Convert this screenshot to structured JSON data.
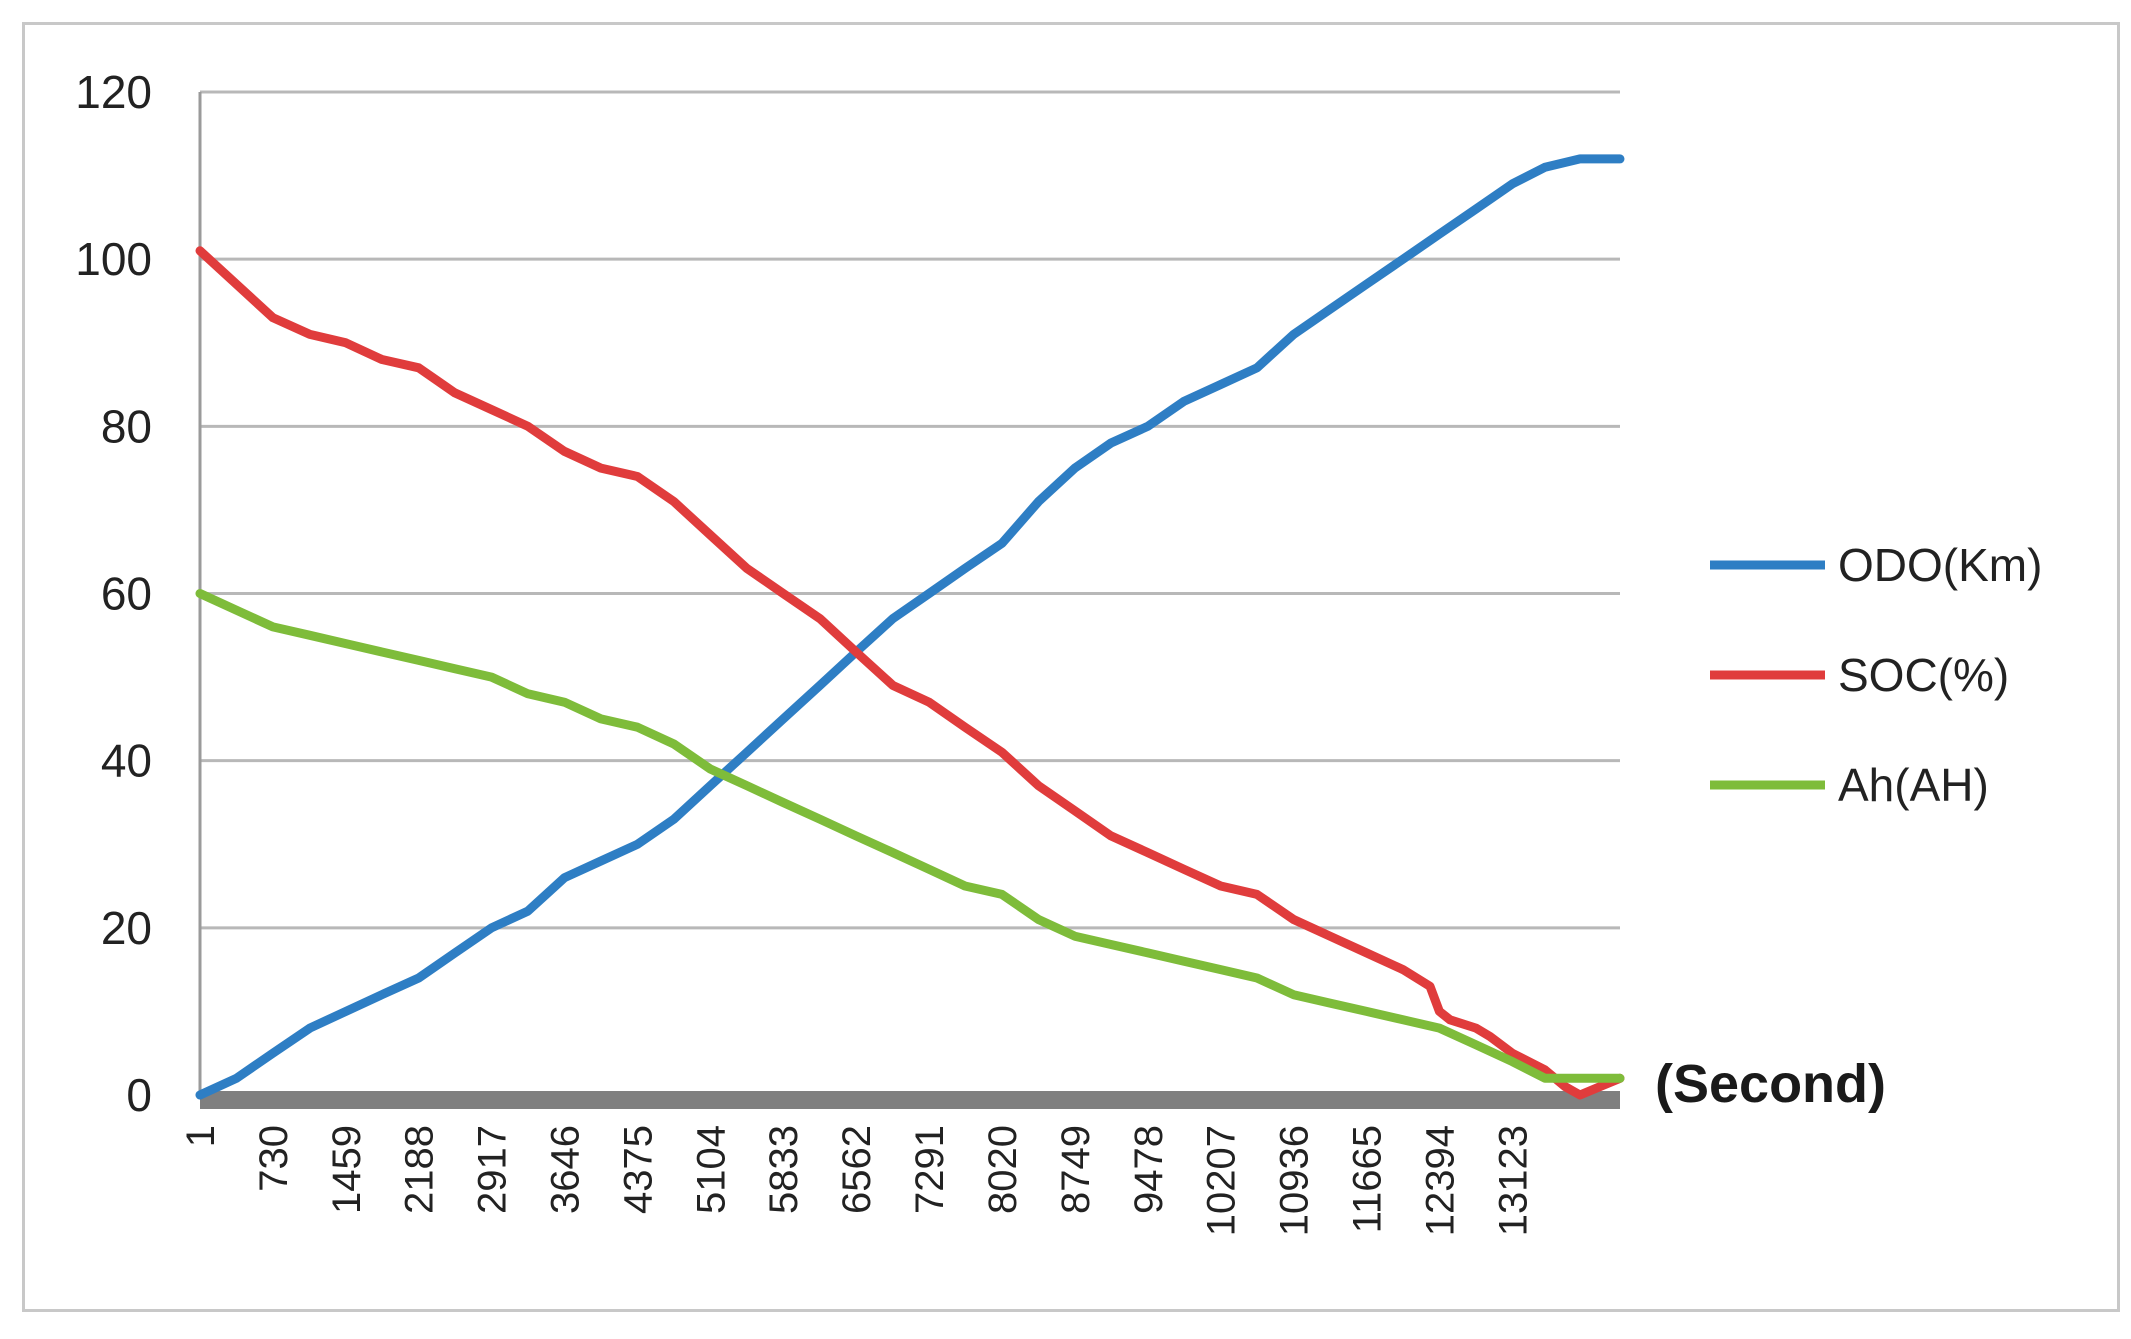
{
  "chart_data": {
    "type": "line",
    "title": "",
    "xlabel": "(Second)",
    "ylabel": "",
    "ylim": [
      0,
      120
    ],
    "yticks": [
      0,
      20,
      40,
      60,
      80,
      100,
      120
    ],
    "xlim": [
      1,
      14200
    ],
    "xticks": [
      "1",
      "730",
      "1459",
      "2188",
      "2917",
      "3646",
      "4375",
      "5104",
      "5833",
      "6562",
      "7291",
      "8020",
      "8749",
      "9478",
      "10207",
      "10936",
      "11665",
      "12394",
      "13123"
    ],
    "grid": true,
    "legend_position": "right",
    "colors": {
      "ODO": "#2e7ec4",
      "SOC": "#e03c3c",
      "Ah": "#7ebc3a",
      "axis_bar": "#7f7f7f",
      "grid": "#b8b8b8"
    },
    "series": [
      {
        "name": "ODO(Km)",
        "color": "#2e7ec4",
        "x": [
          1,
          365,
          730,
          1100,
          1459,
          1820,
          2188,
          2550,
          2917,
          3280,
          3646,
          4010,
          4375,
          4740,
          5104,
          5470,
          5833,
          6200,
          6562,
          6930,
          7291,
          7650,
          8020,
          8385,
          8749,
          9110,
          9478,
          9840,
          10207,
          10570,
          10936,
          11300,
          11665,
          12030,
          12394,
          12760,
          13123,
          13450,
          13800,
          14200
        ],
        "y": [
          0,
          2,
          5,
          8,
          10,
          12,
          14,
          17,
          20,
          22,
          26,
          28,
          30,
          33,
          37,
          41,
          45,
          49,
          53,
          57,
          60,
          63,
          66,
          71,
          75,
          78,
          80,
          83,
          85,
          87,
          91,
          94,
          97,
          100,
          103,
          106,
          109,
          111,
          112,
          112
        ]
      },
      {
        "name": "SOC(%)",
        "color": "#e03c3c",
        "x": [
          1,
          365,
          730,
          1100,
          1459,
          1820,
          2188,
          2550,
          2917,
          3280,
          3646,
          4010,
          4375,
          4740,
          5104,
          5470,
          5833,
          6200,
          6562,
          6930,
          7291,
          7650,
          8020,
          8385,
          8749,
          9110,
          9478,
          9840,
          10207,
          10570,
          10936,
          11300,
          11665,
          12030,
          12300,
          12394,
          12500,
          12760,
          12900,
          13123,
          13450,
          13650,
          13800,
          14000,
          14200
        ],
        "y": [
          101,
          97,
          93,
          91,
          90,
          88,
          87,
          84,
          82,
          80,
          77,
          75,
          74,
          71,
          67,
          63,
          60,
          57,
          53,
          49,
          47,
          44,
          41,
          37,
          34,
          31,
          29,
          27,
          25,
          24,
          21,
          19,
          17,
          15,
          13,
          10,
          9,
          8,
          7,
          5,
          3,
          1,
          0,
          1,
          2
        ]
      },
      {
        "name": "Ah(AH)",
        "color": "#7ebc3a",
        "x": [
          1,
          365,
          730,
          1100,
          1459,
          1820,
          2188,
          2550,
          2917,
          3280,
          3646,
          4010,
          4375,
          4740,
          5104,
          5470,
          5833,
          6200,
          6562,
          6930,
          7291,
          7650,
          8020,
          8385,
          8749,
          9110,
          9478,
          9840,
          10207,
          10570,
          10936,
          11300,
          11665,
          12030,
          12394,
          12760,
          13123,
          13450,
          13800,
          14200
        ],
        "y": [
          60,
          58,
          56,
          55,
          54,
          53,
          52,
          51,
          50,
          48,
          47,
          45,
          44,
          42,
          39,
          37,
          35,
          33,
          31,
          29,
          27,
          25,
          24,
          21,
          19,
          18,
          17,
          16,
          15,
          14,
          12,
          11,
          10,
          9,
          8,
          6,
          4,
          2,
          2,
          2
        ]
      }
    ]
  }
}
